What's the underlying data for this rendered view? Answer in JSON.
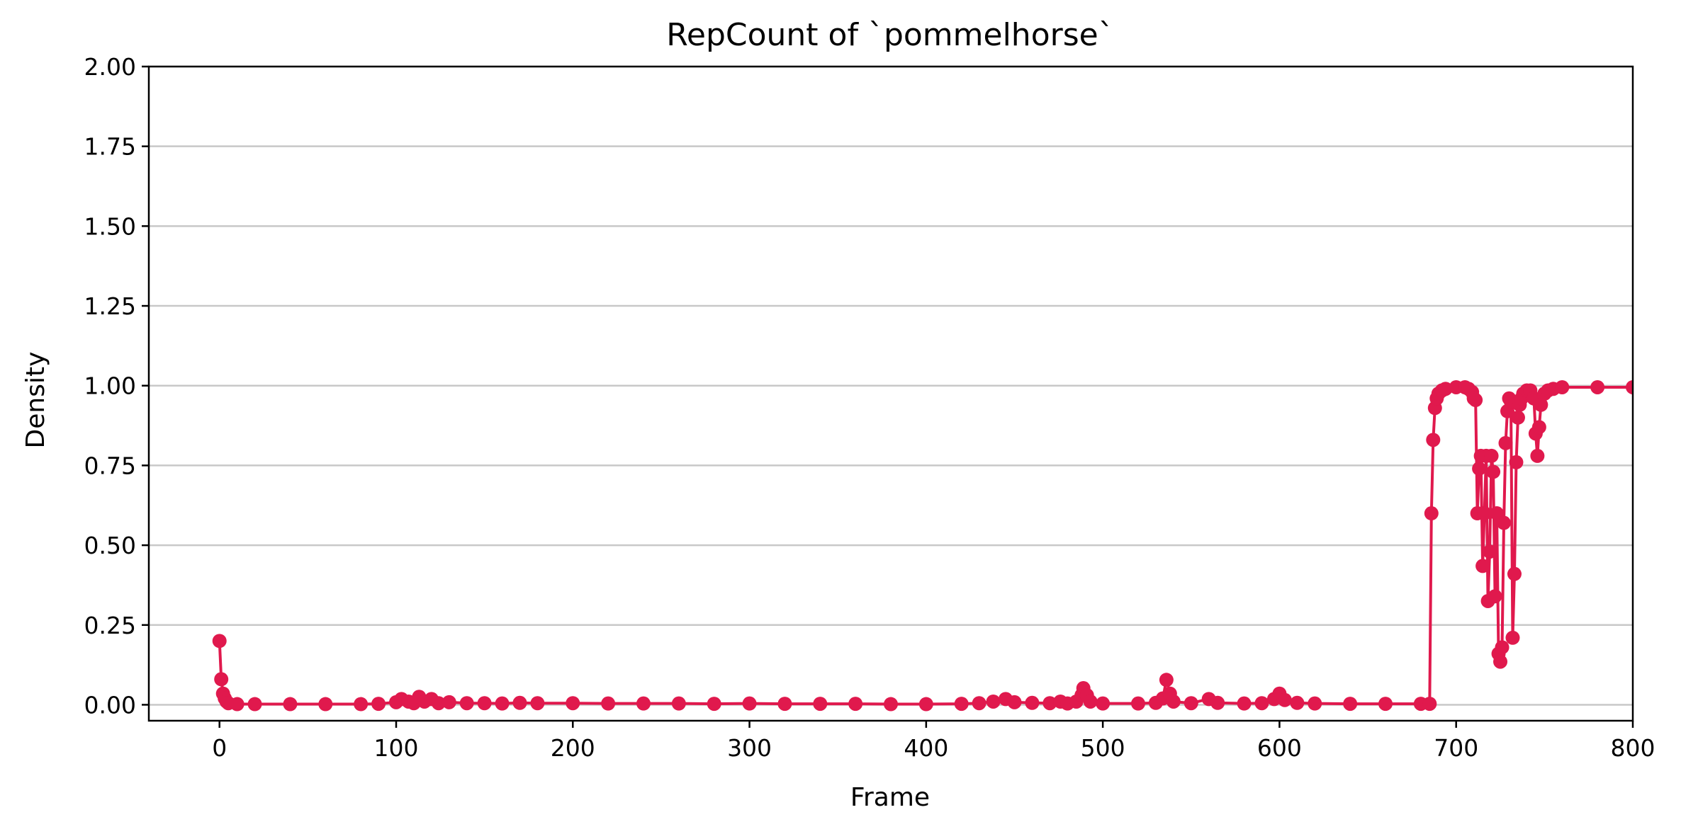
{
  "chart_data": {
    "type": "line",
    "title": "RepCount of `pommelhorse`",
    "xlabel": "Frame",
    "ylabel": "Density",
    "xlim": [
      -40,
      800
    ],
    "ylim": [
      -0.05,
      2.0
    ],
    "xticks": [
      0,
      100,
      200,
      300,
      400,
      500,
      600,
      700,
      800
    ],
    "xtick_labels": [
      "0",
      "100",
      "200",
      "300",
      "400",
      "500",
      "600",
      "700",
      "800"
    ],
    "yticks": [
      0.0,
      0.25,
      0.5,
      0.75,
      1.0,
      1.25,
      1.5,
      1.75,
      2.0
    ],
    "ytick_labels": [
      "0.00",
      "0.25",
      "0.50",
      "0.75",
      "1.00",
      "1.25",
      "1.50",
      "1.75",
      "2.00"
    ],
    "grid": "horizontal",
    "legend": "none",
    "series": [
      {
        "color": "#e0194d",
        "marker": "circle",
        "points": [
          [
            0,
            0.2
          ],
          [
            1,
            0.08
          ],
          [
            2,
            0.035
          ],
          [
            3,
            0.02
          ],
          [
            4,
            0.01
          ],
          [
            5,
            0.005
          ],
          [
            10,
            0.002
          ],
          [
            20,
            0.002
          ],
          [
            40,
            0.002
          ],
          [
            60,
            0.002
          ],
          [
            80,
            0.002
          ],
          [
            90,
            0.003
          ],
          [
            100,
            0.008
          ],
          [
            103,
            0.018
          ],
          [
            107,
            0.01
          ],
          [
            110,
            0.005
          ],
          [
            113,
            0.025
          ],
          [
            116,
            0.01
          ],
          [
            120,
            0.018
          ],
          [
            124,
            0.005
          ],
          [
            130,
            0.008
          ],
          [
            140,
            0.005
          ],
          [
            150,
            0.005
          ],
          [
            160,
            0.004
          ],
          [
            170,
            0.006
          ],
          [
            180,
            0.005
          ],
          [
            200,
            0.005
          ],
          [
            220,
            0.004
          ],
          [
            240,
            0.004
          ],
          [
            260,
            0.004
          ],
          [
            280,
            0.003
          ],
          [
            300,
            0.004
          ],
          [
            320,
            0.003
          ],
          [
            340,
            0.003
          ],
          [
            360,
            0.003
          ],
          [
            380,
            0.002
          ],
          [
            400,
            0.002
          ],
          [
            420,
            0.003
          ],
          [
            430,
            0.005
          ],
          [
            438,
            0.01
          ],
          [
            445,
            0.018
          ],
          [
            450,
            0.008
          ],
          [
            460,
            0.006
          ],
          [
            470,
            0.005
          ],
          [
            476,
            0.01
          ],
          [
            480,
            0.004
          ],
          [
            485,
            0.01
          ],
          [
            488,
            0.03
          ],
          [
            489,
            0.052
          ],
          [
            491,
            0.03
          ],
          [
            493,
            0.01
          ],
          [
            500,
            0.004
          ],
          [
            520,
            0.004
          ],
          [
            530,
            0.006
          ],
          [
            534,
            0.02
          ],
          [
            536,
            0.078
          ],
          [
            538,
            0.035
          ],
          [
            540,
            0.01
          ],
          [
            550,
            0.005
          ],
          [
            560,
            0.018
          ],
          [
            565,
            0.006
          ],
          [
            580,
            0.004
          ],
          [
            590,
            0.005
          ],
          [
            597,
            0.018
          ],
          [
            600,
            0.035
          ],
          [
            603,
            0.015
          ],
          [
            610,
            0.006
          ],
          [
            620,
            0.004
          ],
          [
            640,
            0.003
          ],
          [
            660,
            0.003
          ],
          [
            680,
            0.003
          ],
          [
            685,
            0.003
          ],
          [
            686,
            0.6
          ],
          [
            687,
            0.83
          ],
          [
            688,
            0.93
          ],
          [
            689,
            0.96
          ],
          [
            690,
            0.975
          ],
          [
            692,
            0.985
          ],
          [
            694,
            0.99
          ],
          [
            700,
            0.995
          ],
          [
            705,
            0.995
          ],
          [
            707,
            0.99
          ],
          [
            709,
            0.98
          ],
          [
            710,
            0.96
          ],
          [
            711,
            0.955
          ],
          [
            712,
            0.6
          ],
          [
            713,
            0.74
          ],
          [
            714,
            0.78
          ],
          [
            715,
            0.435
          ],
          [
            716,
            0.6
          ],
          [
            717,
            0.78
          ],
          [
            718,
            0.325
          ],
          [
            719,
            0.48
          ],
          [
            720,
            0.78
          ],
          [
            721,
            0.73
          ],
          [
            722,
            0.34
          ],
          [
            723,
            0.6
          ],
          [
            724,
            0.16
          ],
          [
            725,
            0.135
          ],
          [
            726,
            0.18
          ],
          [
            727,
            0.57
          ],
          [
            728,
            0.82
          ],
          [
            729,
            0.92
          ],
          [
            730,
            0.96
          ],
          [
            731,
            0.95
          ],
          [
            732,
            0.21
          ],
          [
            733,
            0.41
          ],
          [
            734,
            0.76
          ],
          [
            735,
            0.9
          ],
          [
            736,
            0.94
          ],
          [
            737,
            0.96
          ],
          [
            738,
            0.975
          ],
          [
            740,
            0.985
          ],
          [
            742,
            0.985
          ],
          [
            744,
            0.96
          ],
          [
            745,
            0.85
          ],
          [
            746,
            0.78
          ],
          [
            747,
            0.87
          ],
          [
            748,
            0.94
          ],
          [
            750,
            0.975
          ],
          [
            752,
            0.985
          ],
          [
            755,
            0.99
          ],
          [
            760,
            0.995
          ],
          [
            780,
            0.995
          ],
          [
            800,
            0.995
          ]
        ]
      }
    ]
  }
}
